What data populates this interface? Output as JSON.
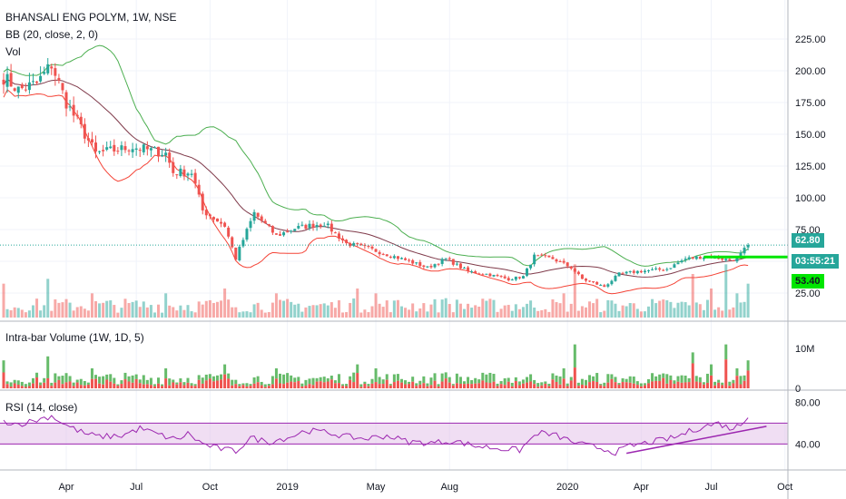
{
  "colors": {
    "up": "#26a69a",
    "down": "#ef5350",
    "bb_upper": "#4caf50",
    "bb_lower": "#f44336",
    "bb_basis": "#7f3a4a",
    "rsi_line": "#9c27b0",
    "rsi_band": "#e1bee7",
    "trendline": "#9c27b0",
    "level_line": "#00e600",
    "grid": "#f0f3fa",
    "axis_border": "#b2b5be"
  },
  "header": {
    "symbol_line": "BHANSALI ENG POLYM, 1W, NSE",
    "bb_line": "BB (20, close, 2, 0)",
    "vol_line": "Vol"
  },
  "panes": {
    "intrabar_title": "Intra-bar Volume (1W, 1D, 5)",
    "rsi_title": "RSI (14, close)"
  },
  "price_axis": {
    "ticks": [
      "225.00",
      "200.00",
      "175.00",
      "150.00",
      "125.00",
      "100.00",
      "75.00",
      "50.00",
      "25.00"
    ],
    "last_price": "62.80",
    "countdown": "03:55:21",
    "level_price": "53.40"
  },
  "volume_axis": {
    "ticks": [
      "10M",
      "0"
    ]
  },
  "rsi_axis": {
    "ticks": [
      "80.00",
      "40.00"
    ]
  },
  "time_axis": {
    "labels": [
      "Apr",
      "Jul",
      "Oct",
      "2019",
      "May",
      "Aug",
      "2020",
      "Apr",
      "Jul",
      "Oct"
    ]
  },
  "chart_data": {
    "type": "candlestick",
    "price_range": [
      10,
      250
    ],
    "close_anchors": [
      [
        0,
        195
      ],
      [
        4,
        185
      ],
      [
        9,
        190
      ],
      [
        13,
        205
      ],
      [
        17,
        175
      ],
      [
        25,
        135
      ],
      [
        35,
        140
      ],
      [
        44,
        135
      ],
      [
        46,
        120
      ],
      [
        51,
        120
      ],
      [
        54,
        90
      ],
      [
        60,
        78
      ],
      [
        63,
        52
      ],
      [
        64,
        60
      ],
      [
        68,
        88
      ],
      [
        74,
        70
      ],
      [
        79,
        76
      ],
      [
        87,
        80
      ],
      [
        93,
        64
      ],
      [
        99,
        60
      ],
      [
        109,
        51
      ],
      [
        115,
        45
      ],
      [
        120,
        52
      ],
      [
        126,
        42
      ],
      [
        131,
        40
      ],
      [
        137,
        36
      ],
      [
        141,
        38
      ],
      [
        144,
        54
      ],
      [
        149,
        52
      ],
      [
        154,
        45
      ],
      [
        157,
        36
      ],
      [
        163,
        30
      ],
      [
        167,
        40
      ],
      [
        172,
        42
      ],
      [
        180,
        44
      ],
      [
        185,
        52
      ],
      [
        191,
        54
      ],
      [
        197,
        51
      ],
      [
        199,
        52
      ],
      [
        202,
        62.8
      ]
    ],
    "last_price": 62.8,
    "level": 53.4,
    "rsi_anchors": [
      [
        0,
        62
      ],
      [
        4,
        59
      ],
      [
        9,
        63
      ],
      [
        13,
        67
      ],
      [
        17,
        58
      ],
      [
        22,
        50
      ],
      [
        26,
        47
      ],
      [
        32,
        48
      ],
      [
        37,
        55
      ],
      [
        43,
        48
      ],
      [
        47,
        44
      ],
      [
        50,
        50
      ],
      [
        54,
        40
      ],
      [
        58,
        36
      ],
      [
        63,
        33
      ],
      [
        67,
        46
      ],
      [
        72,
        42
      ],
      [
        78,
        47
      ],
      [
        82,
        53
      ],
      [
        88,
        51
      ],
      [
        93,
        47
      ],
      [
        98,
        45
      ],
      [
        104,
        48
      ],
      [
        110,
        42
      ],
      [
        116,
        41
      ],
      [
        122,
        43
      ],
      [
        128,
        38
      ],
      [
        134,
        36
      ],
      [
        140,
        34
      ],
      [
        145,
        51
      ],
      [
        150,
        48
      ],
      [
        156,
        40
      ],
      [
        162,
        36
      ],
      [
        166,
        32
      ],
      [
        170,
        38
      ],
      [
        176,
        42
      ],
      [
        182,
        46
      ],
      [
        186,
        52
      ],
      [
        190,
        57
      ],
      [
        194,
        60
      ],
      [
        197,
        55
      ],
      [
        200,
        58
      ],
      [
        202,
        68
      ]
    ],
    "rsi_range": [
      15,
      90
    ],
    "rsi_band": [
      40,
      60
    ],
    "volume_range": [
      0,
      15
    ],
    "volume_spikes": [
      [
        0,
        7
      ],
      [
        12,
        8
      ],
      [
        24,
        5
      ],
      [
        44,
        5
      ],
      [
        60,
        6
      ],
      [
        74,
        5
      ],
      [
        96,
        6
      ],
      [
        101,
        5
      ],
      [
        120,
        4
      ],
      [
        152,
        5
      ],
      [
        155,
        11
      ],
      [
        170,
        3
      ],
      [
        187,
        9
      ],
      [
        192,
        6
      ],
      [
        196,
        11
      ],
      [
        199,
        5
      ],
      [
        202,
        7
      ]
    ],
    "bars": 203,
    "time_label_bar_index": [
      17,
      36,
      56,
      77,
      101,
      121,
      153,
      173,
      192,
      212
    ]
  }
}
